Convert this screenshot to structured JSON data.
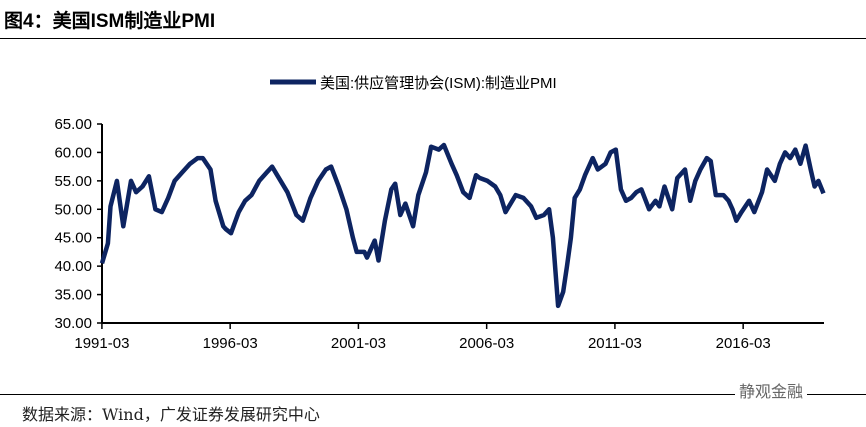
{
  "header": {
    "title": "图4：美国ISM制造业PMI"
  },
  "footer": {
    "source": "数据来源：Wind，广发证券发展研究中心",
    "watermark": "静观金融"
  },
  "chart_data": {
    "type": "line",
    "title": "",
    "xlabel": "",
    "ylabel": "",
    "ylim": [
      30,
      65
    ],
    "xlim": [
      1991.17,
      2019.4
    ],
    "yticks": [
      "30.00",
      "35.00",
      "40.00",
      "45.00",
      "50.00",
      "55.00",
      "60.00",
      "65.00"
    ],
    "xticks": [
      "1991-03",
      "1996-03",
      "2001-03",
      "2006-03",
      "2011-03",
      "2016-03"
    ],
    "legend": {
      "position": "top-center"
    },
    "colors": {
      "line": "#0d2461"
    },
    "series": [
      {
        "name": "美国:供应管理协会(ISM):制造业PMI",
        "x": [
          1991.17,
          1991.4,
          1991.5,
          1991.75,
          1992.0,
          1992.3,
          1992.5,
          1992.75,
          1993.0,
          1993.25,
          1993.5,
          1993.75,
          1994.0,
          1994.3,
          1994.6,
          1994.9,
          1995.1,
          1995.4,
          1995.6,
          1995.9,
          1996.0,
          1996.2,
          1996.5,
          1996.75,
          1997.0,
          1997.3,
          1997.6,
          1997.8,
          1998.0,
          1998.4,
          1998.75,
          1999.0,
          1999.3,
          1999.6,
          1999.9,
          2000.1,
          2000.4,
          2000.7,
          2000.95,
          2001.1,
          2001.4,
          2001.5,
          2001.8,
          2001.95,
          2002.2,
          2002.45,
          2002.6,
          2002.8,
          2003.0,
          2003.3,
          2003.5,
          2003.8,
          2004.0,
          2004.3,
          2004.5,
          2004.8,
          2005.0,
          2005.25,
          2005.5,
          2005.75,
          2005.9,
          2006.2,
          2006.5,
          2006.7,
          2006.9,
          2007.1,
          2007.3,
          2007.6,
          2007.9,
          2008.1,
          2008.4,
          2008.6,
          2008.75,
          2008.95,
          2009.15,
          2009.3,
          2009.45,
          2009.6,
          2009.8,
          2010.0,
          2010.3,
          2010.5,
          2010.8,
          2011.0,
          2011.2,
          2011.4,
          2011.6,
          2011.8,
          2012.0,
          2012.2,
          2012.5,
          2012.75,
          2012.9,
          2013.1,
          2013.4,
          2013.6,
          2013.9,
          2014.1,
          2014.3,
          2014.5,
          2014.75,
          2014.9,
          2015.1,
          2015.4,
          2015.6,
          2015.75,
          2015.9,
          2016.1,
          2016.4,
          2016.6,
          2016.9,
          2017.1,
          2017.4,
          2017.6,
          2017.8,
          2018.0,
          2018.2,
          2018.4,
          2018.6,
          2018.8,
          2018.95,
          2019.1,
          2019.3
        ],
        "values": [
          40.5,
          44,
          50.5,
          55,
          47,
          55,
          53,
          54,
          55.8,
          50,
          49.5,
          52,
          55,
          56.5,
          58,
          59,
          59,
          57,
          51.5,
          47,
          46.5,
          45.8,
          49.5,
          51.5,
          52.5,
          55,
          56.5,
          57.5,
          56,
          53,
          49,
          48,
          52,
          55,
          57,
          57.5,
          54,
          50,
          45,
          42.5,
          42.5,
          41.5,
          44.5,
          41,
          48,
          53.5,
          54.5,
          49,
          51,
          47,
          52.5,
          56.5,
          61,
          60.5,
          61.3,
          58,
          56,
          53,
          52,
          56,
          55.5,
          55,
          54,
          52.5,
          49.5,
          51,
          52.5,
          52,
          50.5,
          48.5,
          49,
          50,
          45,
          33,
          35.5,
          40,
          45,
          52,
          53.5,
          56,
          59,
          57,
          58,
          60,
          60.5,
          53.5,
          51.5,
          52,
          53,
          53.5,
          50,
          51.5,
          50.5,
          54,
          50,
          55.5,
          57,
          51.5,
          55,
          57,
          59,
          58.5,
          52.5,
          52.5,
          51.5,
          50,
          48,
          49.5,
          51.5,
          49.5,
          53,
          57,
          55,
          58,
          60,
          59,
          60.5,
          58,
          61.2,
          57,
          54,
          55,
          52.8
        ]
      }
    ]
  }
}
